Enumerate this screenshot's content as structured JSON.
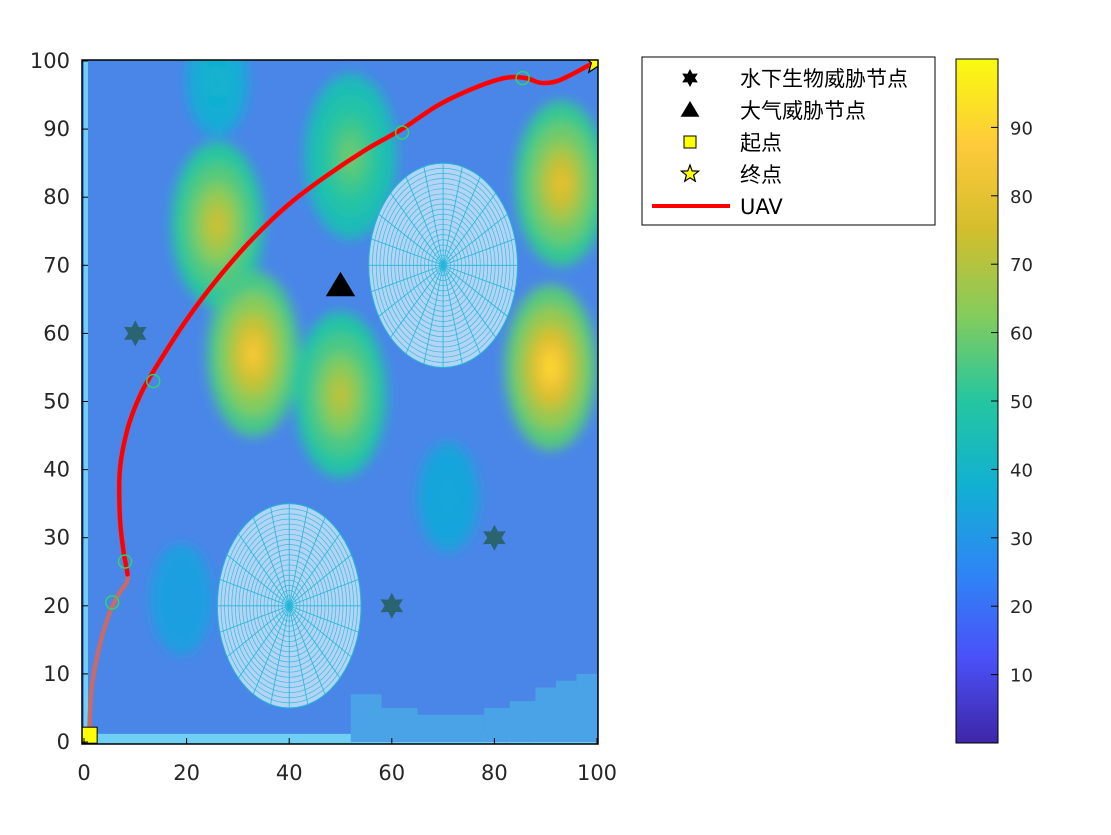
{
  "chart_data": {
    "type": "heatmap",
    "title": "",
    "xlabel": "",
    "ylabel": "",
    "xlim": [
      0,
      100
    ],
    "ylim": [
      0,
      100
    ],
    "x_ticks": [
      "0",
      "20",
      "40",
      "60",
      "80",
      "100"
    ],
    "y_ticks": [
      "0",
      "10",
      "20",
      "30",
      "40",
      "50",
      "60",
      "70",
      "80",
      "90",
      "100"
    ],
    "colorbar": {
      "range": [
        0,
        100
      ],
      "ticks": [
        "10",
        "20",
        "30",
        "40",
        "50",
        "60",
        "70",
        "80",
        "90"
      ],
      "colormap": [
        "#3e26a8",
        "#4a51f8",
        "#2e86f5",
        "#11b0d2",
        "#24c6a0",
        "#84cc5c",
        "#d3be2c",
        "#feca3b",
        "#f9fb0e"
      ]
    },
    "threat_peaks": [
      {
        "x": 26,
        "y": 97,
        "value": 40
      },
      {
        "x": 26,
        "y": 76,
        "value": 78
      },
      {
        "x": 52,
        "y": 86,
        "value": 62
      },
      {
        "x": 33,
        "y": 57,
        "value": 90
      },
      {
        "x": 50,
        "y": 51,
        "value": 75
      },
      {
        "x": 93,
        "y": 82,
        "value": 84
      },
      {
        "x": 91,
        "y": 55,
        "value": 96
      },
      {
        "x": 71,
        "y": 36,
        "value": 35
      },
      {
        "x": 19,
        "y": 21,
        "value": 32
      }
    ],
    "series": [
      {
        "name": "水下生物威胁节点",
        "marker": "hexagram",
        "color": "#000000",
        "points": [
          [
            10,
            60
          ],
          [
            80,
            30
          ],
          [
            60,
            20
          ]
        ]
      },
      {
        "name": "大气威胁节点",
        "marker": "triangle",
        "color": "#000000",
        "points": [
          [
            50,
            67
          ]
        ]
      },
      {
        "name": "起点",
        "marker": "square",
        "color": "#ffff00",
        "points": [
          [
            1,
            1
          ]
        ]
      },
      {
        "name": "终点",
        "marker": "star",
        "color": "#ffff00",
        "points": [
          [
            100,
            100
          ]
        ]
      },
      {
        "name": "UAV",
        "marker": "line",
        "color": "#ff0000",
        "points": [
          [
            1,
            1
          ],
          [
            1.5,
            8
          ],
          [
            3,
            14
          ],
          [
            5,
            19
          ],
          [
            7,
            22
          ],
          [
            8.5,
            24
          ],
          [
            7.7,
            28
          ],
          [
            7,
            33
          ],
          [
            7,
            40
          ],
          [
            8.5,
            46
          ],
          [
            11,
            51
          ],
          [
            14,
            55
          ],
          [
            20,
            62
          ],
          [
            26,
            68
          ],
          [
            33,
            74
          ],
          [
            40,
            79
          ],
          [
            47,
            83
          ],
          [
            55,
            87
          ],
          [
            62,
            90
          ],
          [
            69,
            93.5
          ],
          [
            76,
            96
          ],
          [
            82,
            97.5
          ],
          [
            86,
            97.5
          ],
          [
            89,
            96.8
          ],
          [
            92,
            97
          ],
          [
            95,
            98
          ],
          [
            98,
            99.2
          ],
          [
            100,
            100
          ]
        ]
      }
    ],
    "path_waypoints": [
      [
        5.5,
        20.5
      ],
      [
        8,
        26.5
      ],
      [
        13.5,
        53
      ],
      [
        62,
        89.5
      ],
      [
        85.5,
        97.5
      ]
    ],
    "zones": [
      {
        "cx": 40,
        "cy": 20,
        "r": 15,
        "rx": 14
      },
      {
        "cx": 70,
        "cy": 70,
        "r": 15,
        "rx": 14.5
      }
    ],
    "legend": {
      "placement": "top-right outside",
      "entries": [
        "水下生物威胁节点",
        "大气威胁节点",
        "起点",
        "终点",
        "UAV"
      ]
    }
  }
}
